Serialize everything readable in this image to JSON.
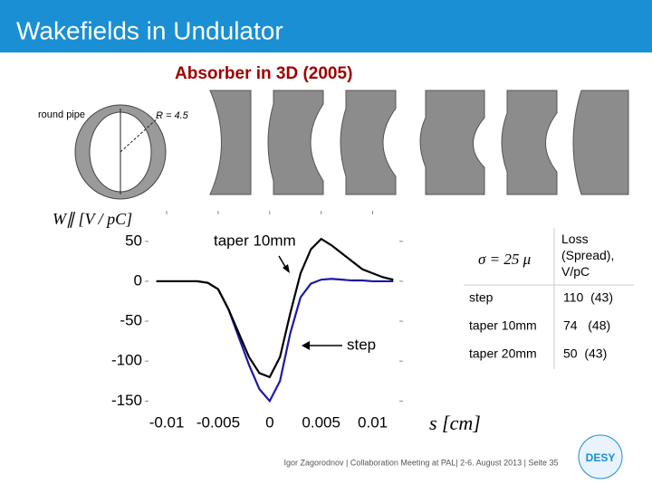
{
  "title": "Wakefields in Undulator",
  "subtitle": "Absorber in 3D (2005)",
  "figure": {
    "pipe_label": "round pipe",
    "radius_label": "R = 4.5"
  },
  "chart_data": {
    "type": "line",
    "y_label": "W∥ [V / pC]",
    "x_label": "s [cm]",
    "x": [
      -0.011,
      -0.01,
      -0.009,
      -0.008,
      -0.007,
      -0.006,
      -0.005,
      -0.004,
      -0.003,
      -0.002,
      -0.001,
      0,
      0.001,
      0.002,
      0.003,
      0.004,
      0.005,
      0.006,
      0.007,
      0.008,
      0.009,
      0.01,
      0.011,
      0.012
    ],
    "series": [
      {
        "name": "step",
        "color": "#1a1aa6",
        "values": [
          0,
          0,
          0,
          0,
          0,
          -2,
          -10,
          -35,
          -70,
          -105,
          -135,
          -150,
          -125,
          -65,
          -20,
          -3,
          2,
          3,
          2,
          1,
          1,
          0,
          0,
          0
        ]
      },
      {
        "name": "taper 10mm",
        "color": "#000000",
        "values": [
          0,
          0,
          0,
          0,
          0,
          -2,
          -10,
          -35,
          -65,
          -95,
          -115,
          -120,
          -95,
          -40,
          10,
          40,
          53,
          45,
          35,
          25,
          15,
          10,
          5,
          2
        ]
      }
    ],
    "xlim": [
      -0.0115,
      0.0125
    ],
    "ylim": [
      -153,
      69
    ],
    "xticks": [
      -0.01,
      -0.005,
      0,
      0.005,
      0.01
    ],
    "yticks": [
      50,
      0,
      -50,
      -100,
      -150
    ]
  },
  "table": {
    "header": [
      "σ = 25   μ",
      "Loss (Spread), V/pC"
    ],
    "rows": [
      [
        "step",
        "110  (43)"
      ],
      [
        "taper 10mm",
        "74   (48)"
      ],
      [
        "taper 20mm",
        "50  (43)"
      ]
    ]
  },
  "footer": "Igor Zagorodnov | Collaboration Meeting at PAL| 2-6. August 2013  |  Seite 35",
  "logo": "DESY"
}
